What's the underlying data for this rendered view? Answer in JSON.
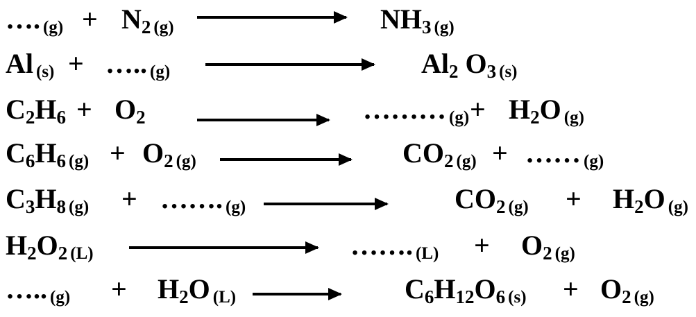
{
  "equations": [
    {
      "reactants": [
        {
          "formula": [
            {
              "t": "…."
            }
          ],
          "state": "(g)"
        },
        {
          "formula": [
            {
              "t": "N"
            },
            {
              "s": "2"
            }
          ],
          "state": "(g)"
        }
      ],
      "products": [
        {
          "formula": [
            {
              "t": "NH"
            },
            {
              "s": "3"
            }
          ],
          "state": "(g)"
        }
      ]
    },
    {
      "reactants": [
        {
          "formula": [
            {
              "t": "Al"
            }
          ],
          "state": "(s)"
        },
        {
          "formula": [
            {
              "t": "….."
            }
          ],
          "state": "(g)"
        }
      ],
      "products": [
        {
          "formula": [
            {
              "t": "Al"
            },
            {
              "s": "2"
            },
            {
              "t": " O"
            },
            {
              "s": "3"
            }
          ],
          "state": "(s)"
        }
      ]
    },
    {
      "reactants": [
        {
          "formula": [
            {
              "t": "C"
            },
            {
              "s": "2"
            },
            {
              "t": "H"
            },
            {
              "s": "6"
            }
          ],
          "state": ""
        },
        {
          "formula": [
            {
              "t": "O"
            },
            {
              "s": "2"
            }
          ],
          "state": ""
        }
      ],
      "products": [
        {
          "formula": [
            {
              "t": "………"
            }
          ],
          "state": "(g)"
        },
        {
          "formula": [
            {
              "t": "H"
            },
            {
              "s": "2"
            },
            {
              "t": "O"
            }
          ],
          "state": "(g)"
        }
      ]
    },
    {
      "reactants": [
        {
          "formula": [
            {
              "t": "C"
            },
            {
              "s": "6"
            },
            {
              "t": "H"
            },
            {
              "s": "6"
            }
          ],
          "state": "(g)"
        },
        {
          "formula": [
            {
              "t": "O"
            },
            {
              "s": "2"
            }
          ],
          "state": "(g)"
        }
      ],
      "products": [
        {
          "formula": [
            {
              "t": "CO"
            },
            {
              "s": "2"
            }
          ],
          "state": "(g)"
        },
        {
          "formula": [
            {
              "t": "……"
            }
          ],
          "state": "(g)"
        }
      ]
    },
    {
      "reactants": [
        {
          "formula": [
            {
              "t": "C"
            },
            {
              "s": "3"
            },
            {
              "t": "H"
            },
            {
              "s": "8"
            }
          ],
          "state": "(g)"
        },
        {
          "formula": [
            {
              "t": "……."
            }
          ],
          "state": "(g)"
        }
      ],
      "products": [
        {
          "formula": [
            {
              "t": "CO"
            },
            {
              "s": "2"
            }
          ],
          "state": "(g)"
        },
        {
          "formula": [
            {
              "t": "H"
            },
            {
              "s": "2"
            },
            {
              "t": "O"
            }
          ],
          "state": "(g)"
        }
      ]
    },
    {
      "reactants": [
        {
          "formula": [
            {
              "t": "H"
            },
            {
              "s": "2"
            },
            {
              "t": "O"
            },
            {
              "s": "2"
            }
          ],
          "state": "(L)"
        }
      ],
      "products": [
        {
          "formula": [
            {
              "t": "……."
            }
          ],
          "state": "(L)"
        },
        {
          "formula": [
            {
              "t": "O"
            },
            {
              "s": "2"
            }
          ],
          "state": "(g)"
        }
      ]
    },
    {
      "reactants": [
        {
          "formula": [
            {
              "t": "….."
            }
          ],
          "state": "(g)"
        },
        {
          "formula": [
            {
              "t": "H"
            },
            {
              "s": "2"
            },
            {
              "t": "O"
            }
          ],
          "state": "(L)"
        }
      ],
      "products": [
        {
          "formula": [
            {
              "t": "C"
            },
            {
              "s": "6"
            },
            {
              "t": "H"
            },
            {
              "s": "12"
            },
            {
              "t": "O"
            },
            {
              "s": "6"
            }
          ],
          "state": "(s)"
        },
        {
          "formula": [
            {
              "t": "O"
            },
            {
              "s": "2"
            }
          ],
          "state": "(g)"
        }
      ]
    }
  ],
  "plus_sign": "+"
}
